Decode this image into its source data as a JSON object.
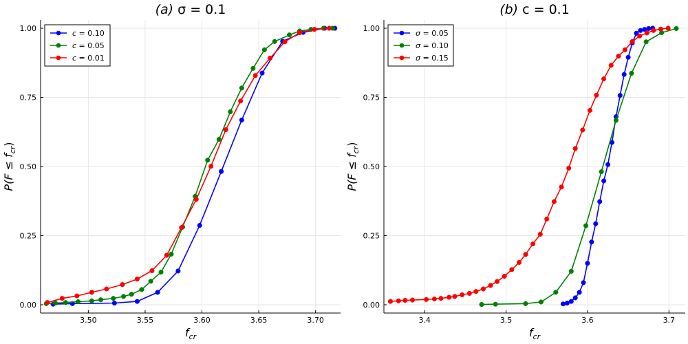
{
  "chart_data": [
    {
      "type": "line",
      "title_prefix": "(a)",
      "title_eq": "σ = 0.1",
      "xlabel_main": "f",
      "xlabel_sub": "cr",
      "ylabel": "P(F ≤ f",
      "ylabel_sub": "cr",
      "ylabel_end": ")",
      "xlim": [
        3.458,
        3.722
      ],
      "ylim": [
        -0.03,
        1.03
      ],
      "xticks": [
        3.5,
        3.55,
        3.6,
        3.65,
        3.7
      ],
      "xtick_labels": [
        "3.50",
        "3.55",
        "3.60",
        "3.65",
        "3.70"
      ],
      "yticks": [
        0.0,
        0.25,
        0.5,
        0.75,
        1.0
      ],
      "ytick_labels": [
        "0.00",
        "0.25",
        "0.50",
        "0.75",
        "1.00"
      ],
      "legend_position": "top-left",
      "series": [
        {
          "name_var": "c",
          "name_val": "0.10",
          "color": "#0000ff",
          "x": [
            3.469,
            3.486,
            3.523,
            3.543,
            3.561,
            3.579,
            3.598,
            3.617,
            3.635,
            3.653,
            3.671,
            3.689,
            3.708,
            3.717
          ],
          "y": [
            0.002,
            0.004,
            0.006,
            0.012,
            0.045,
            0.122,
            0.287,
            0.482,
            0.668,
            0.838,
            0.953,
            0.985,
            1.0,
            1.0
          ]
        },
        {
          "name_var": "c",
          "name_val": "0.05",
          "color": "#008000",
          "x": [
            3.463,
            3.471,
            3.48,
            3.491,
            3.503,
            3.511,
            3.522,
            3.531,
            3.538,
            3.547,
            3.555,
            3.564,
            3.573,
            3.583,
            3.594,
            3.605,
            3.615,
            3.625,
            3.635,
            3.645,
            3.655,
            3.664,
            3.677,
            3.686,
            3.696,
            3.707,
            3.715
          ],
          "y": [
            0.004,
            0.006,
            0.008,
            0.011,
            0.014,
            0.018,
            0.023,
            0.03,
            0.038,
            0.055,
            0.085,
            0.118,
            0.183,
            0.281,
            0.392,
            0.523,
            0.598,
            0.698,
            0.784,
            0.855,
            0.922,
            0.952,
            0.976,
            0.99,
            0.996,
            1.0,
            1.0
          ]
        },
        {
          "name_var": "c",
          "name_val": "0.01",
          "color": "#ff0000",
          "x": [
            3.464,
            3.477,
            3.49,
            3.503,
            3.516,
            3.53,
            3.543,
            3.556,
            3.569,
            3.582,
            3.595,
            3.608,
            3.621,
            3.634,
            3.647,
            3.66,
            3.673,
            3.686,
            3.699,
            3.712
          ],
          "y": [
            0.008,
            0.023,
            0.032,
            0.045,
            0.057,
            0.073,
            0.093,
            0.123,
            0.179,
            0.279,
            0.381,
            0.501,
            0.633,
            0.737,
            0.829,
            0.892,
            0.951,
            0.984,
            0.996,
            1.0
          ]
        }
      ]
    },
    {
      "type": "line",
      "title_prefix": "(b)",
      "title_eq": "c = 0.1",
      "xlabel_main": "f",
      "xlabel_sub": "cr",
      "ylabel": "P(F ≤ f",
      "ylabel_sub": "cr",
      "ylabel_end": ")",
      "xlim": [
        3.35,
        3.72
      ],
      "ylim": [
        -0.03,
        1.03
      ],
      "xticks": [
        3.4,
        3.5,
        3.6,
        3.7
      ],
      "xtick_labels": [
        "3.4",
        "3.5",
        "3.6",
        "3.7"
      ],
      "yticks": [
        0.0,
        0.25,
        0.5,
        0.75,
        1.0
      ],
      "ytick_labels": [
        "0.00",
        "0.25",
        "0.50",
        "0.75",
        "1.00"
      ],
      "legend_position": "top-left",
      "series": [
        {
          "name_var": "σ",
          "name_val": "0.05",
          "color": "#0000ff",
          "x": [
            3.57,
            3.575,
            3.58,
            3.585,
            3.59,
            3.595,
            3.6,
            3.605,
            3.61,
            3.615,
            3.62,
            3.625,
            3.63,
            3.635,
            3.64,
            3.645,
            3.65,
            3.655,
            3.66,
            3.665,
            3.67,
            3.675,
            3.68
          ],
          "y": [
            0.003,
            0.006,
            0.012,
            0.025,
            0.045,
            0.08,
            0.15,
            0.227,
            0.293,
            0.373,
            0.448,
            0.507,
            0.587,
            0.68,
            0.757,
            0.833,
            0.895,
            0.947,
            0.982,
            0.992,
            0.996,
            0.999,
            1.0
          ]
        },
        {
          "name_var": "σ",
          "name_val": "0.10",
          "color": "#008000",
          "x": [
            3.47,
            3.487,
            3.524,
            3.543,
            3.561,
            3.58,
            3.598,
            3.617,
            3.635,
            3.654,
            3.672,
            3.691,
            3.709
          ],
          "y": [
            0.001,
            0.002,
            0.004,
            0.01,
            0.045,
            0.121,
            0.286,
            0.481,
            0.667,
            0.837,
            0.951,
            0.984,
            0.999
          ]
        },
        {
          "name_var": "σ",
          "name_val": "0.15",
          "color": "#ff0000",
          "x": [
            3.358,
            3.368,
            3.376,
            3.385,
            3.402,
            3.412,
            3.42,
            3.43,
            3.437,
            3.446,
            3.455,
            3.463,
            3.472,
            3.481,
            3.489,
            3.498,
            3.507,
            3.516,
            3.524,
            3.533,
            3.542,
            3.55,
            3.559,
            3.568,
            3.577,
            3.585,
            3.594,
            3.603,
            3.611,
            3.62,
            3.629,
            3.638,
            3.646,
            3.655,
            3.664,
            3.673,
            3.681,
            3.69,
            3.699
          ],
          "y": [
            0.012,
            0.014,
            0.016,
            0.017,
            0.019,
            0.021,
            0.023,
            0.027,
            0.03,
            0.036,
            0.041,
            0.048,
            0.057,
            0.07,
            0.084,
            0.103,
            0.127,
            0.153,
            0.182,
            0.22,
            0.255,
            0.31,
            0.373,
            0.426,
            0.494,
            0.565,
            0.632,
            0.703,
            0.758,
            0.817,
            0.866,
            0.899,
            0.922,
            0.952,
            0.972,
            0.983,
            0.992,
            0.997,
            1.0
          ]
        }
      ]
    }
  ]
}
